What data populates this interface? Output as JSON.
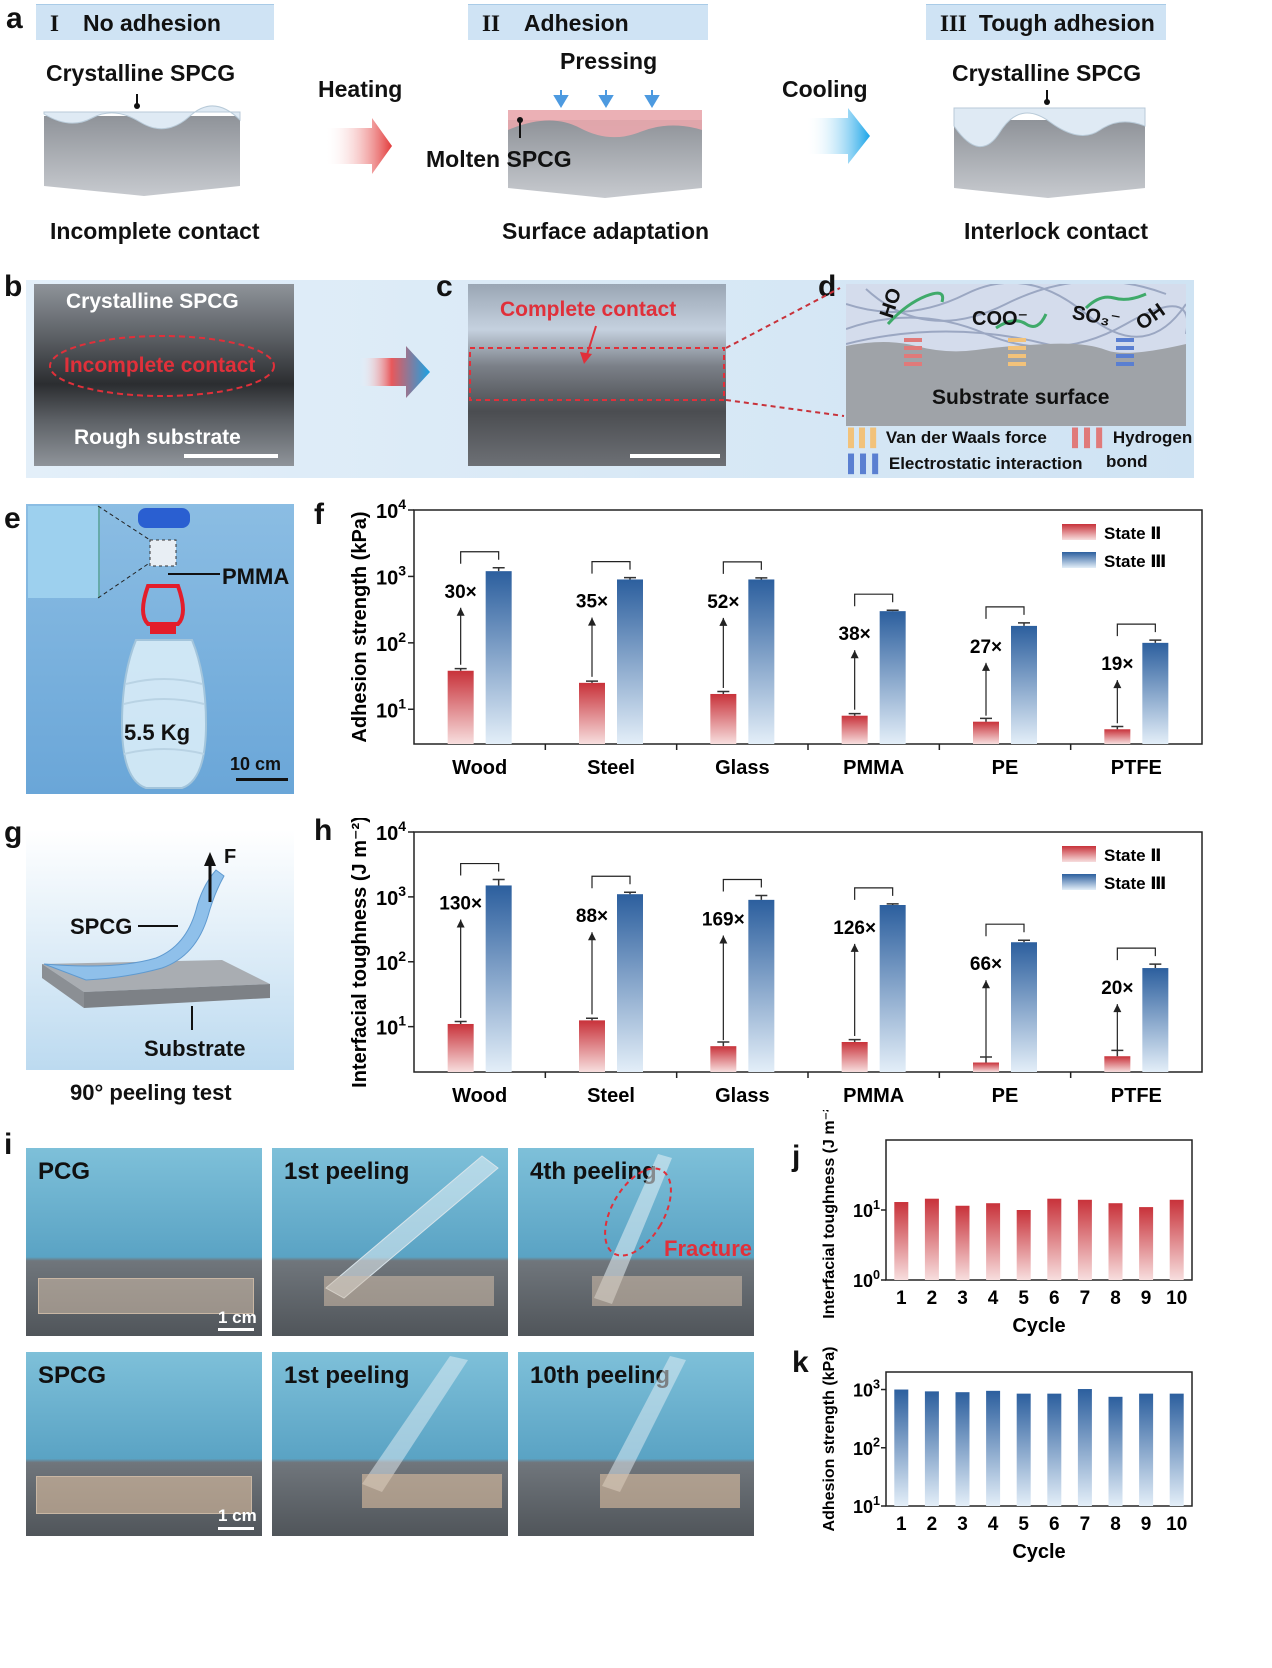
{
  "panel_labels": {
    "a": "a",
    "b": "b",
    "c": "c",
    "d": "d",
    "e": "e",
    "f": "f",
    "g": "g",
    "h": "h",
    "i": "i",
    "j": "j",
    "k": "k"
  },
  "panel_a": {
    "stages": [
      {
        "numeral": "I",
        "title": "No adhesion",
        "material": "Crystalline SPCG",
        "contact": "Incomplete contact"
      },
      {
        "numeral": "II",
        "title": "Adhesion",
        "material": "Molten SPCG",
        "contact": "Surface adaptation",
        "force": "Pressing"
      },
      {
        "numeral": "III",
        "title": "Tough  adhesion",
        "material": "Crystalline SPCG",
        "contact": "Interlock contact"
      }
    ],
    "arrow1": "Heating",
    "arrow2": "Cooling"
  },
  "panel_b": {
    "top": "Crystalline SPCG",
    "mid": "Incomplete contact",
    "bottom": "Rough substrate"
  },
  "panel_c": {
    "label": "Complete contact"
  },
  "panel_d": {
    "groups": [
      "HO",
      "COO⁻",
      "SO₃⁻",
      "OH"
    ],
    "surface": "Substrate surface",
    "legend": [
      {
        "label": "Van der Waals force",
        "color": "#f2c27a"
      },
      {
        "label": "Hydrogen bond",
        "line1": "Hydrogen",
        "line2": "bond",
        "color": "#e07a7a"
      },
      {
        "label": "Electrostatic interaction",
        "color": "#5a7fd1"
      }
    ]
  },
  "panel_e": {
    "material": "PMMA",
    "weight": "5.5 Kg",
    "scale": "10 cm"
  },
  "panel_g": {
    "force": "F",
    "layer": "SPCG",
    "substrate": "Substrate",
    "caption": "90° peeling test"
  },
  "panel_i": {
    "rows": [
      {
        "sample": "PCG",
        "frames": [
          "1st peeling",
          "4th peeling"
        ],
        "note": "Fracture",
        "scale": "1 cm"
      },
      {
        "sample": "SPCG",
        "frames": [
          "1st peeling",
          "10th peeling"
        ],
        "scale": "1 cm"
      }
    ]
  },
  "colors": {
    "state2": "#c8323a",
    "state3": "#2c5f9e",
    "panel_bg": "#d8e9f7"
  },
  "chart_data": [
    {
      "id": "f",
      "type": "bar",
      "scale": "log",
      "ylabel": "Adhesion strength (kPa)",
      "yticks": [
        {
          "e": "1"
        },
        {
          "e": "2"
        },
        {
          "e": "3"
        },
        {
          "e": "4"
        }
      ],
      "ylim": [
        3,
        10000
      ],
      "categories": [
        "Wood",
        "Steel",
        "Glass",
        "PMMA",
        "PE",
        "PTFE"
      ],
      "series": [
        {
          "name": "State Ⅱ",
          "values": [
            38,
            25,
            17,
            8,
            6.5,
            5
          ],
          "errors": [
            3,
            1.5,
            1.5,
            0.6,
            0.8,
            0.5
          ]
        },
        {
          "name": "State Ⅲ",
          "values": [
            1200,
            900,
            900,
            300,
            180,
            100
          ],
          "errors": [
            150,
            60,
            50,
            10,
            20,
            10
          ]
        }
      ],
      "ratios": [
        "30×",
        "35×",
        "52×",
        "38×",
        "27×",
        "19×"
      ]
    },
    {
      "id": "h",
      "type": "bar",
      "scale": "log",
      "ylabel": "Interfacial toughness (J m⁻²)",
      "yticks": [
        {
          "e": "1"
        },
        {
          "e": "2"
        },
        {
          "e": "3"
        },
        {
          "e": "4"
        }
      ],
      "ylim": [
        2,
        10000
      ],
      "categories": [
        "Wood",
        "Steel",
        "Glass",
        "PMMA",
        "PE",
        "PTFE"
      ],
      "series": [
        {
          "name": "State Ⅱ",
          "values": [
            11,
            12.5,
            5,
            5.8,
            2.8,
            3.5
          ],
          "errors": [
            1,
            1,
            0.8,
            0.5,
            0.6,
            0.8
          ]
        },
        {
          "name": "State Ⅲ",
          "values": [
            1500,
            1100,
            900,
            750,
            200,
            80
          ],
          "errors": [
            350,
            80,
            150,
            30,
            15,
            12
          ]
        }
      ],
      "ratios": [
        "130×",
        "88×",
        "169×",
        "126×",
        "66×",
        "20×"
      ]
    },
    {
      "id": "j",
      "type": "bar",
      "scale": "log",
      "xlabel": "Cycle",
      "ylabel": "Interfacial toughness (J m⁻²)",
      "yticks": [
        {
          "e": "0"
        },
        {
          "e": "1"
        }
      ],
      "ylim": [
        1,
        100
      ],
      "categories": [
        "1",
        "2",
        "3",
        "4",
        "5",
        "6",
        "7",
        "8",
        "9",
        "10"
      ],
      "values": [
        13,
        14.5,
        11.5,
        12.5,
        10,
        14.5,
        14,
        12.5,
        11,
        14
      ]
    },
    {
      "id": "k",
      "type": "bar",
      "scale": "log",
      "xlabel": "Cycle",
      "ylabel": "Adhesion strength (kPa)",
      "yticks": [
        {
          "e": "1"
        },
        {
          "e": "2"
        },
        {
          "e": "3"
        }
      ],
      "ylim": [
        10,
        2000
      ],
      "categories": [
        "1",
        "2",
        "3",
        "4",
        "5",
        "6",
        "7",
        "8",
        "9",
        "10"
      ],
      "values": [
        1000,
        930,
        900,
        950,
        850,
        850,
        1020,
        750,
        850,
        850
      ]
    }
  ]
}
